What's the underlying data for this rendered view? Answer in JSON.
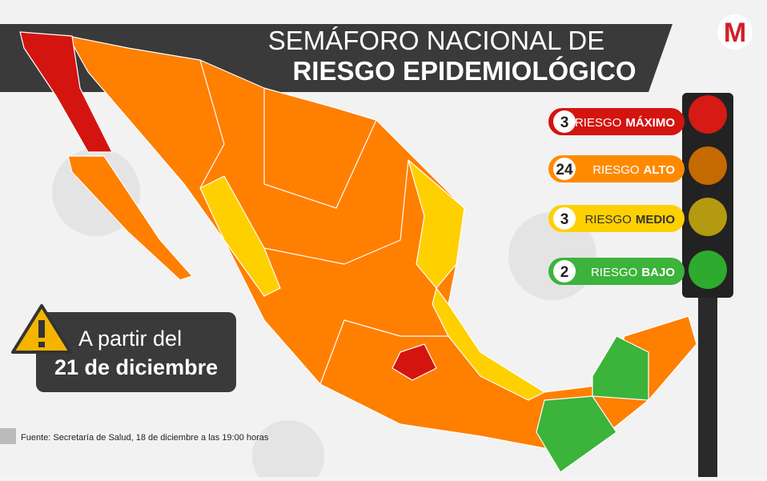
{
  "header": {
    "title_line1": "SEMÁFORO NACIONAL DE",
    "title_line2": "RIESGO EPIDEMIOLÓGICO"
  },
  "logo": "M",
  "legend": [
    {
      "count": 3,
      "label": "RIESGO",
      "level": "MÁXIMO"
    },
    {
      "count": 24,
      "label": "RIESGO",
      "level": "ALTO"
    },
    {
      "count": 3,
      "label": "RIESGO",
      "level": "MEDIO"
    },
    {
      "count": 2,
      "label": "RIESGO",
      "level": "BAJO"
    }
  ],
  "notice": {
    "line1": "A partir del",
    "line2": "21 de diciembre"
  },
  "source": "Fuente: Secretaría de Salud, 18 de diciembre a las 19:00 horas"
}
